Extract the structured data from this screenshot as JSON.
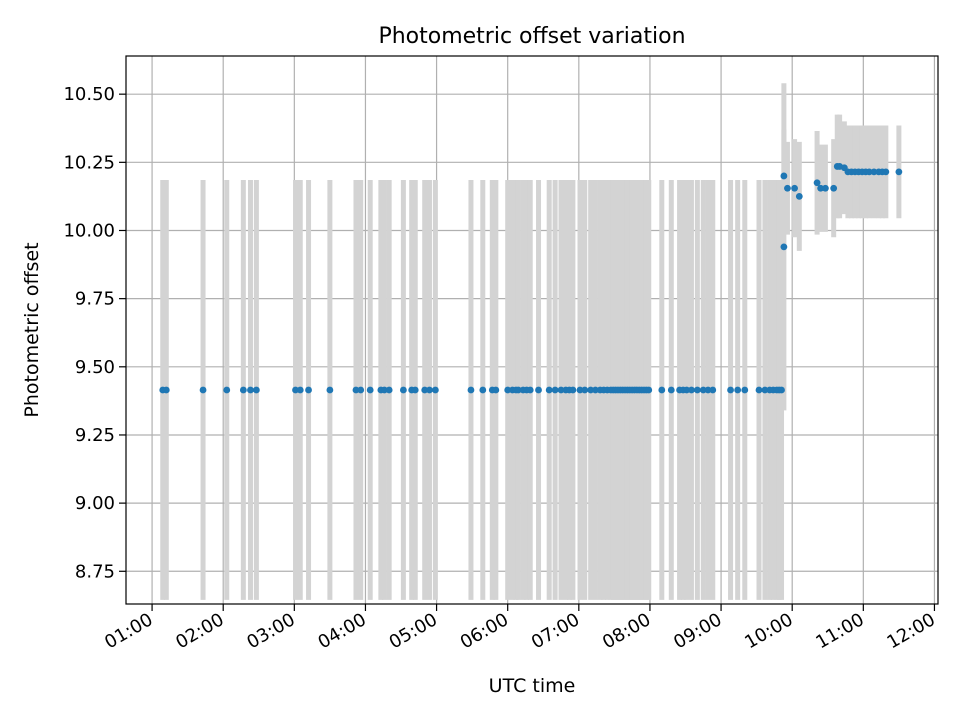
{
  "chart_data": {
    "type": "scatter",
    "title": "Photometric offset variation",
    "xlabel": "UTC time",
    "ylabel": "Photometric offset",
    "x_axis": "time",
    "xlim": [
      "00:38",
      "12:03"
    ],
    "ylim": [
      8.63,
      10.64
    ],
    "x_ticks": [
      "01:00",
      "02:00",
      "03:00",
      "04:00",
      "05:00",
      "06:00",
      "07:00",
      "08:00",
      "09:00",
      "10:00",
      "11:00",
      "12:00"
    ],
    "y_ticks": [
      "8.75",
      "9.00",
      "9.25",
      "9.50",
      "9.75",
      "10.00",
      "10.25",
      "10.50"
    ],
    "grid": true,
    "colors": {
      "points": "#1f77b4",
      "error_bars": "#d3d3d3",
      "grid": "#b0b0b0",
      "axes": "#000000"
    },
    "series": [
      {
        "x": [
          "01:09",
          "01:12",
          "01:43",
          "02:03",
          "02:17",
          "02:23",
          "02:28",
          "03:01",
          "03:05",
          "03:12",
          "03:30",
          "03:52",
          "03:56",
          "04:04",
          "04:13",
          "04:16",
          "04:20",
          "04:32",
          "04:39",
          "04:42",
          "04:50",
          "04:54",
          "04:59",
          "05:29",
          "05:39",
          "05:47",
          "05:50",
          "06:00",
          "06:04",
          "06:07",
          "06:09",
          "06:13",
          "06:16",
          "06:19",
          "06:26",
          "06:35",
          "06:40",
          "06:45",
          "06:49",
          "06:52",
          "06:55",
          "07:01",
          "07:05",
          "07:10",
          "07:14",
          "07:18",
          "07:21",
          "07:24",
          "07:27",
          "07:29",
          "07:31",
          "07:33",
          "07:35",
          "07:37",
          "07:39",
          "07:41",
          "07:43",
          "07:45",
          "07:47",
          "07:49",
          "07:51",
          "07:53",
          "07:55",
          "07:57",
          "07:59",
          "08:10",
          "08:18",
          "08:25",
          "08:28",
          "08:31",
          "08:35",
          "08:40",
          "08:45",
          "08:49",
          "08:53",
          "09:08",
          "09:14",
          "09:20",
          "09:32",
          "09:37",
          "09:41",
          "09:44",
          "09:47",
          "09:49",
          "09:51",
          "09:53",
          "09:53",
          "09:56",
          "10:02",
          "10:06",
          "10:21",
          "10:24",
          "10:28",
          "10:35",
          "10:38",
          "10:40",
          "10:44",
          "10:47",
          "10:50",
          "10:53",
          "10:56",
          "10:59",
          "11:02",
          "11:05",
          "11:09",
          "11:13",
          "11:16",
          "11:19",
          "11:30"
        ],
        "y": [
          9.415,
          9.415,
          9.415,
          9.415,
          9.415,
          9.415,
          9.415,
          9.415,
          9.415,
          9.415,
          9.415,
          9.415,
          9.415,
          9.415,
          9.415,
          9.415,
          9.415,
          9.415,
          9.415,
          9.415,
          9.415,
          9.415,
          9.415,
          9.415,
          9.415,
          9.415,
          9.415,
          9.415,
          9.415,
          9.415,
          9.415,
          9.415,
          9.415,
          9.415,
          9.415,
          9.415,
          9.415,
          9.415,
          9.415,
          9.415,
          9.415,
          9.415,
          9.415,
          9.415,
          9.415,
          9.415,
          9.415,
          9.415,
          9.415,
          9.415,
          9.415,
          9.415,
          9.415,
          9.415,
          9.415,
          9.415,
          9.415,
          9.415,
          9.415,
          9.415,
          9.415,
          9.415,
          9.415,
          9.415,
          9.415,
          9.415,
          9.415,
          9.415,
          9.415,
          9.415,
          9.415,
          9.415,
          9.415,
          9.415,
          9.415,
          9.415,
          9.415,
          9.415,
          9.415,
          9.415,
          9.415,
          9.415,
          9.415,
          9.415,
          9.415,
          9.94,
          10.2,
          10.155,
          10.155,
          10.125,
          10.175,
          10.155,
          10.155,
          10.155,
          10.235,
          10.235,
          10.23,
          10.215,
          10.215,
          10.215,
          10.215,
          10.215,
          10.215,
          10.215,
          10.215,
          10.215,
          10.215,
          10.215,
          10.215
        ],
        "yerr": [
          0.77,
          0.77,
          0.77,
          0.77,
          0.77,
          0.77,
          0.77,
          0.77,
          0.77,
          0.77,
          0.77,
          0.77,
          0.77,
          0.77,
          0.77,
          0.77,
          0.77,
          0.77,
          0.77,
          0.77,
          0.77,
          0.77,
          0.77,
          0.77,
          0.77,
          0.77,
          0.77,
          0.77,
          0.77,
          0.77,
          0.77,
          0.77,
          0.77,
          0.77,
          0.77,
          0.77,
          0.77,
          0.77,
          0.77,
          0.77,
          0.77,
          0.77,
          0.77,
          0.77,
          0.77,
          0.77,
          0.77,
          0.77,
          0.77,
          0.77,
          0.77,
          0.77,
          0.77,
          0.77,
          0.77,
          0.77,
          0.77,
          0.77,
          0.77,
          0.77,
          0.77,
          0.77,
          0.77,
          0.77,
          0.77,
          0.77,
          0.77,
          0.77,
          0.77,
          0.77,
          0.77,
          0.77,
          0.77,
          0.77,
          0.77,
          0.77,
          0.77,
          0.77,
          0.77,
          0.77,
          0.77,
          0.77,
          0.77,
          0.77,
          0.77,
          0.6,
          0.17,
          0.17,
          0.18,
          0.2,
          0.19,
          0.16,
          0.16,
          0.18,
          0.19,
          0.19,
          0.17,
          0.17,
          0.17,
          0.17,
          0.17,
          0.17,
          0.17,
          0.17,
          0.17,
          0.17,
          0.17,
          0.17,
          0.17
        ]
      }
    ]
  }
}
